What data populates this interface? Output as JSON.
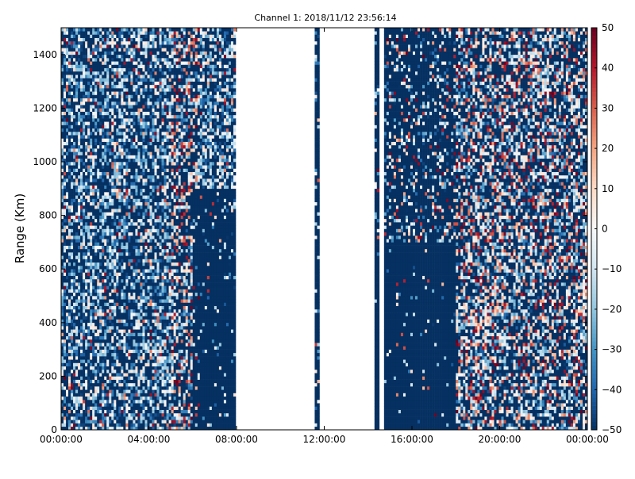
{
  "chart_data": {
    "type": "heatmap",
    "title": "Channel 1: 2018/11/12 23:56:14",
    "xlabel": "",
    "ylabel": "Range (Km)",
    "x_ticks": [
      "00:00:00",
      "04:00:00",
      "08:00:00",
      "12:00:00",
      "16:00:00",
      "20:00:00",
      "00:00:00"
    ],
    "x_tick_hours": [
      0,
      4,
      8,
      12,
      16,
      20,
      24
    ],
    "xlim_hours": [
      0,
      24
    ],
    "y_ticks": [
      "0",
      "200",
      "400",
      "600",
      "800",
      "1000",
      "1200",
      "1400"
    ],
    "y_tick_values": [
      0,
      200,
      400,
      600,
      800,
      1000,
      1200,
      1400
    ],
    "ylim": [
      0,
      1500
    ],
    "colorbar": {
      "min": -50,
      "max": 50,
      "ticks": [
        "50",
        "40",
        "30",
        "20",
        "10",
        "0",
        "−10",
        "−20",
        "−30",
        "−40",
        "−50"
      ],
      "tick_values": [
        50,
        40,
        30,
        20,
        10,
        0,
        -10,
        -20,
        -30,
        -40,
        -50
      ],
      "colormap": "RdBu_r"
    },
    "data_gaps_hours": [
      [
        8.0,
        11.6
      ],
      [
        11.8,
        14.3
      ],
      [
        14.55,
        14.75
      ]
    ],
    "grid": false,
    "legend": "none"
  },
  "colors": {
    "scale_low": "#053061",
    "scale_mid": "#f7f7f7",
    "scale_high": "#67001f"
  }
}
